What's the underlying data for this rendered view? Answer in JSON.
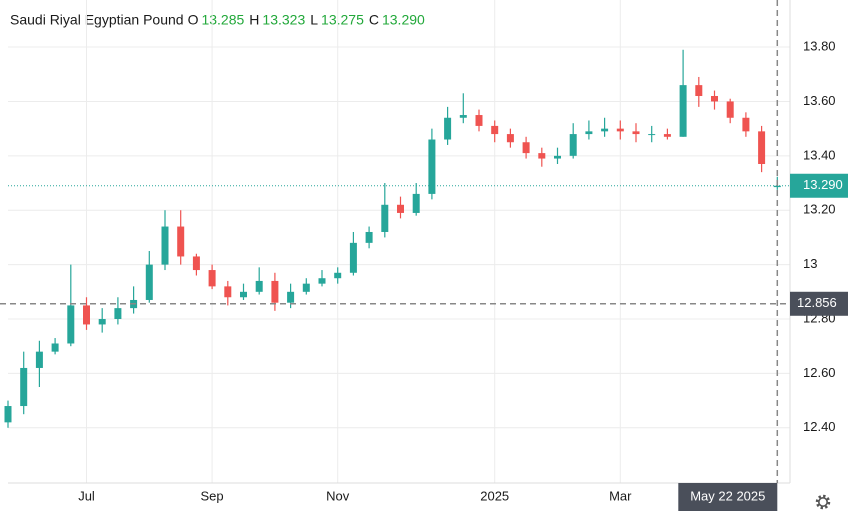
{
  "chart_data": {
    "type": "candlestick",
    "title": "Saudi Riyal Egyptian Pound",
    "ohlc_header": [
      {
        "key": "O",
        "value": "13.285"
      },
      {
        "key": "H",
        "value": "13.323"
      },
      {
        "key": "L",
        "value": "13.275"
      },
      {
        "key": "C",
        "value": "13.290"
      }
    ],
    "categories": [
      null,
      null,
      null,
      null,
      null,
      "Jul",
      null,
      null,
      null,
      null,
      null,
      null,
      null,
      "Sep",
      null,
      null,
      null,
      null,
      null,
      null,
      null,
      "Nov",
      null,
      null,
      null,
      null,
      null,
      null,
      null,
      null,
      null,
      "2025",
      null,
      null,
      null,
      null,
      null,
      null,
      null,
      "Mar",
      null,
      null,
      null,
      null,
      null,
      null,
      null,
      null,
      null,
      null
    ],
    "open": [
      12.42,
      12.48,
      12.62,
      12.68,
      12.71,
      12.85,
      12.78,
      12.8,
      12.84,
      12.87,
      13.0,
      13.14,
      13.03,
      12.98,
      12.92,
      12.88,
      12.9,
      12.94,
      12.86,
      12.9,
      12.93,
      12.95,
      12.97,
      13.08,
      13.12,
      13.22,
      13.19,
      13.26,
      13.46,
      13.54,
      13.55,
      13.51,
      13.48,
      13.45,
      13.41,
      13.39,
      13.4,
      13.48,
      13.49,
      13.5,
      13.49,
      13.48,
      13.48,
      13.47,
      13.66,
      13.62,
      13.6,
      13.54,
      13.49,
      13.285
    ],
    "high": [
      12.5,
      12.68,
      12.72,
      12.73,
      13.0,
      12.88,
      12.84,
      12.88,
      12.92,
      13.05,
      13.2,
      13.2,
      13.04,
      13.0,
      12.94,
      12.93,
      12.99,
      12.97,
      12.93,
      12.95,
      12.98,
      12.99,
      13.12,
      13.14,
      13.3,
      13.25,
      13.3,
      13.5,
      13.58,
      13.63,
      13.57,
      13.53,
      13.5,
      13.47,
      13.43,
      13.43,
      13.52,
      13.53,
      13.54,
      13.53,
      13.52,
      13.51,
      13.5,
      13.79,
      13.69,
      13.64,
      13.61,
      13.56,
      13.51,
      13.323
    ],
    "low": [
      12.4,
      12.45,
      12.55,
      12.67,
      12.7,
      12.76,
      12.75,
      12.78,
      12.82,
      12.86,
      12.98,
      13.0,
      12.96,
      12.91,
      12.85,
      12.87,
      12.89,
      12.83,
      12.84,
      12.89,
      12.92,
      12.93,
      12.96,
      13.06,
      13.1,
      13.17,
      13.18,
      13.24,
      13.44,
      13.52,
      13.49,
      13.45,
      13.43,
      13.39,
      13.36,
      13.37,
      13.39,
      13.46,
      13.47,
      13.46,
      13.45,
      13.45,
      13.46,
      13.47,
      13.58,
      13.57,
      13.52,
      13.47,
      13.34,
      13.275
    ],
    "close": [
      12.48,
      12.62,
      12.68,
      12.71,
      12.85,
      12.78,
      12.8,
      12.84,
      12.87,
      13.0,
      13.14,
      13.03,
      12.98,
      12.92,
      12.88,
      12.9,
      12.94,
      12.86,
      12.9,
      12.93,
      12.95,
      12.97,
      13.08,
      13.12,
      13.22,
      13.19,
      13.26,
      13.46,
      13.54,
      13.55,
      13.51,
      13.48,
      13.45,
      13.41,
      13.39,
      13.4,
      13.48,
      13.49,
      13.5,
      13.49,
      13.48,
      13.48,
      13.47,
      13.66,
      13.62,
      13.6,
      13.54,
      13.49,
      13.37,
      13.29
    ],
    "up_color": "#26a69a",
    "down_color": "#ef5350",
    "ylim": [
      12.197,
      13.973
    ],
    "yticks": [
      {
        "value": 12.4,
        "label": "12.40"
      },
      {
        "value": 12.6,
        "label": "12.60"
      },
      {
        "value": 12.8,
        "label": "12.80"
      },
      13,
      {
        "value": 13.2,
        "label": "13.20"
      },
      {
        "value": 13.4,
        "label": "13.40"
      },
      {
        "value": 13.6,
        "label": "13.60"
      },
      {
        "value": 13.8,
        "label": "13.80"
      }
    ],
    "grid": true,
    "last_price": {
      "value": 13.29,
      "label": "13.290",
      "color": "#26a69a"
    },
    "crosshair": {
      "value": 12.856,
      "label": "12.856",
      "date": "May 22 2025",
      "color": "#4a4f5a"
    }
  }
}
